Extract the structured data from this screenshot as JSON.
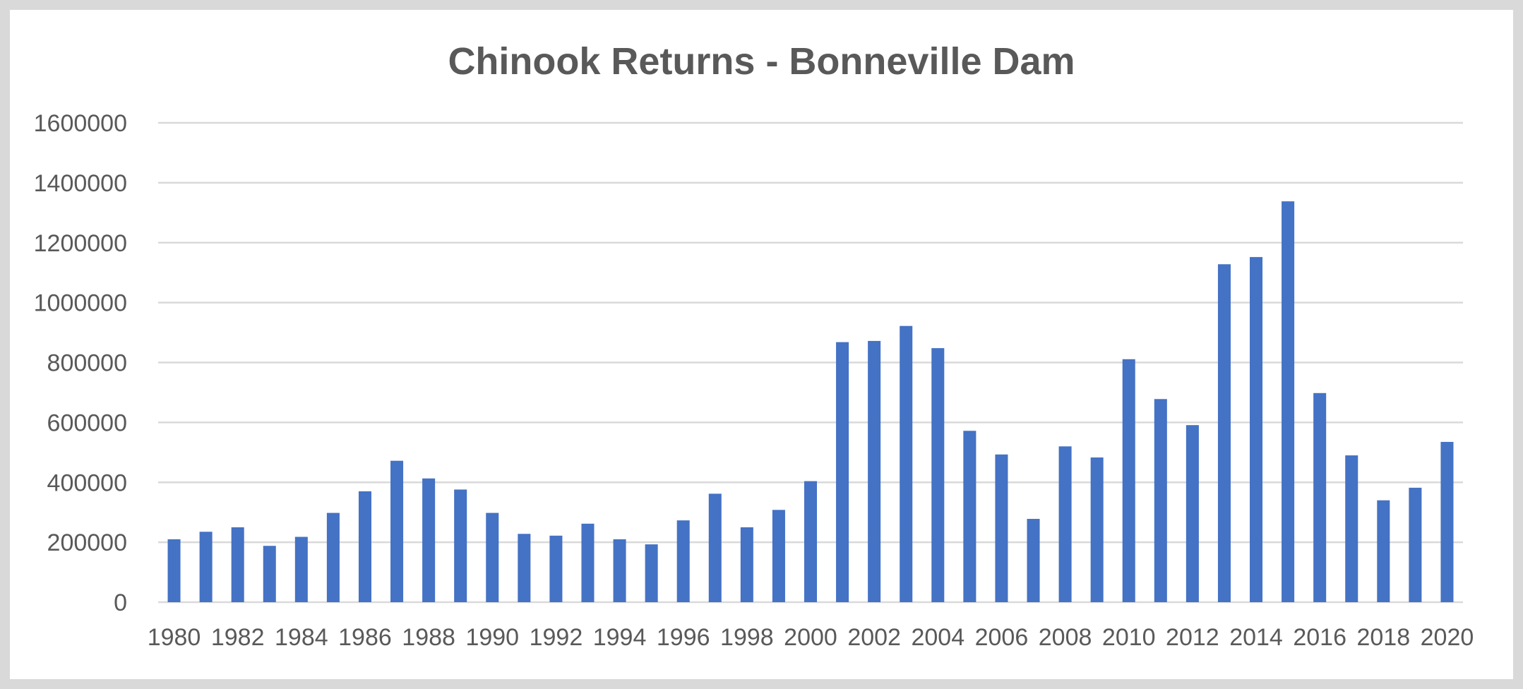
{
  "chart_data": {
    "type": "bar",
    "title": "Chinook Returns - Bonneville Dam",
    "xlabel": "",
    "ylabel": "",
    "ylim": [
      0,
      1600000
    ],
    "yticks": [
      0,
      200000,
      400000,
      600000,
      800000,
      1000000,
      1200000,
      1400000,
      1600000
    ],
    "ytick_labels": [
      "0",
      "200000",
      "400000",
      "600000",
      "800000",
      "1000000",
      "1200000",
      "1400000",
      "1600000"
    ],
    "grid": true,
    "legend": "none",
    "bar_color": "#4472c4",
    "categories": [
      "1980",
      "1981",
      "1982",
      "1983",
      "1984",
      "1985",
      "1986",
      "1987",
      "1988",
      "1989",
      "1990",
      "1991",
      "1992",
      "1993",
      "1994",
      "1995",
      "1996",
      "1997",
      "1998",
      "1999",
      "2000",
      "2001",
      "2002",
      "2003",
      "2004",
      "2005",
      "2006",
      "2007",
      "2008",
      "2009",
      "2010",
      "2011",
      "2012",
      "2013",
      "2014",
      "2015",
      "2016",
      "2017",
      "2018",
      "2019",
      "2020"
    ],
    "xtick_labels": [
      "1980",
      "",
      "1982",
      "",
      "1984",
      "",
      "1986",
      "",
      "1988",
      "",
      "1990",
      "",
      "1992",
      "",
      "1994",
      "",
      "1996",
      "",
      "1998",
      "",
      "2000",
      "",
      "2002",
      "",
      "2004",
      "",
      "2006",
      "",
      "2008",
      "",
      "2010",
      "",
      "2012",
      "",
      "2014",
      "",
      "2016",
      "",
      "2018",
      "",
      "2020"
    ],
    "values": [
      210000,
      235000,
      250000,
      188000,
      218000,
      298000,
      370000,
      472000,
      413000,
      376000,
      298000,
      228000,
      222000,
      262000,
      210000,
      193000,
      273000,
      362000,
      250000,
      308000,
      404000,
      868000,
      872000,
      922000,
      848000,
      572000,
      493000,
      278000,
      520000,
      483000,
      811000,
      678000,
      591000,
      1128000,
      1152000,
      1338000,
      698000,
      490000,
      340000,
      382000,
      535000
    ]
  }
}
